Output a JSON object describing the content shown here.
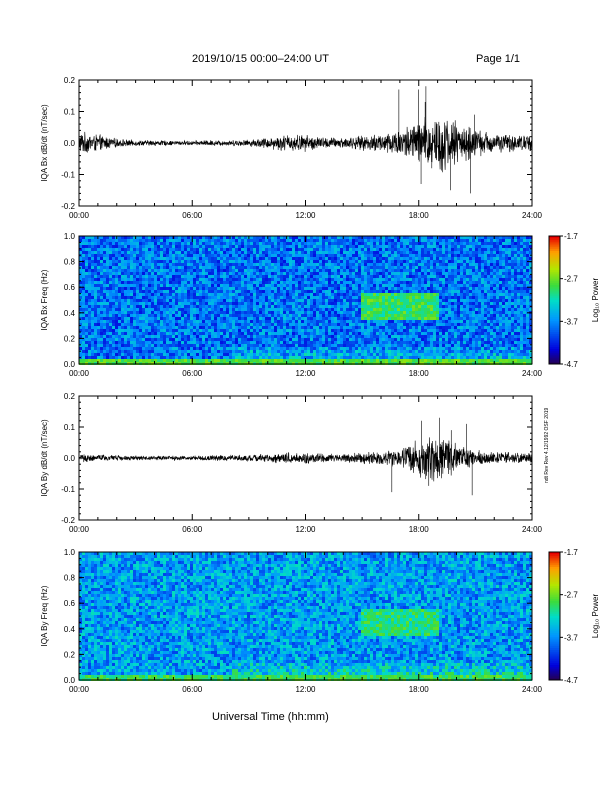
{
  "header": {
    "title": "2019/10/15  00:00–24:00 UT",
    "page": "Page 1/1"
  },
  "footer": {
    "xlabel": "Universal Time (hh:mm)",
    "stamp": "ndt Rev Rev 4.12/1992 OSF 2019"
  },
  "colors": {
    "trace": "#000000",
    "background": "#ffffff"
  },
  "chart_data": [
    {
      "type": "line",
      "ylabel": "IQA Bx dB/dt (nT/sec)",
      "ylim": [
        -0.2,
        0.2
      ],
      "yticks": [
        -0.2,
        -0.1,
        0.0,
        0.1,
        0.2
      ],
      "ytick_labels": [
        "-0.2",
        "-0.1",
        "0.0",
        "0.1",
        "0.2"
      ],
      "xlim": [
        0,
        24
      ],
      "xticks": [
        0,
        6,
        12,
        18,
        24
      ],
      "xtick_labels": [
        "00:00",
        "06:00",
        "12:00",
        "18:00",
        "24:00"
      ],
      "envelope_x": [
        0,
        1,
        2,
        3,
        4,
        5,
        6,
        7,
        8,
        9,
        10,
        11,
        12,
        13,
        14,
        15,
        16,
        17,
        18,
        19,
        20,
        21,
        22,
        23,
        24
      ],
      "envelope_amp": [
        0.04,
        0.03,
        0.015,
        0.01,
        0.01,
        0.008,
        0.008,
        0.01,
        0.01,
        0.012,
        0.02,
        0.03,
        0.03,
        0.02,
        0.02,
        0.025,
        0.035,
        0.05,
        0.08,
        0.11,
        0.08,
        0.05,
        0.035,
        0.03,
        0.03
      ],
      "peak_values": [
        0.18,
        0.17,
        0.17,
        -0.16,
        -0.15,
        0.13,
        -0.13,
        0.09,
        -0.08
      ]
    },
    {
      "type": "heatmap",
      "ylabel": "IQA Bx Freq (Hz)",
      "ylim": [
        0.0,
        1.0
      ],
      "yticks": [
        0.0,
        0.2,
        0.4,
        0.6,
        0.8,
        1.0
      ],
      "ytick_labels": [
        "0.0",
        "0.2",
        "0.4",
        "0.6",
        "0.8",
        "1.0"
      ],
      "xlim": [
        0,
        24
      ],
      "xticks": [
        0,
        6,
        12,
        18,
        24
      ],
      "xtick_labels": [
        "00:00",
        "06:00",
        "12:00",
        "18:00",
        "24:00"
      ],
      "colorbar": {
        "label": "Log₁₀ Power",
        "range": [
          -4.7,
          -1.7
        ],
        "tick_labels": [
          "-1.7",
          "-2.7",
          "-3.7",
          "-4.7"
        ]
      },
      "features": {
        "baseline": -3.8,
        "low_freq_band": -2.8,
        "enhancement_hours": [
          15,
          19
        ],
        "enhancement_freq": [
          0.35,
          0.55
        ],
        "enhancement_level": -2.9
      }
    },
    {
      "type": "line",
      "ylabel": "IQA By dB/dt (nT/sec)",
      "ylim": [
        -0.2,
        0.2
      ],
      "yticks": [
        -0.2,
        -0.1,
        0.0,
        0.1,
        0.2
      ],
      "ytick_labels": [
        "-0.2",
        "-0.1",
        "0.0",
        "0.1",
        "0.2"
      ],
      "xlim": [
        0,
        24
      ],
      "xticks": [
        0,
        6,
        12,
        18,
        24
      ],
      "xtick_labels": [
        "00:00",
        "06:00",
        "12:00",
        "18:00",
        "24:00"
      ],
      "envelope_x": [
        0,
        1,
        2,
        3,
        4,
        5,
        6,
        7,
        8,
        9,
        10,
        11,
        12,
        13,
        14,
        15,
        16,
        17,
        18,
        19,
        20,
        21,
        22,
        23,
        24
      ],
      "envelope_amp": [
        0.015,
        0.012,
        0.01,
        0.008,
        0.008,
        0.008,
        0.008,
        0.01,
        0.01,
        0.012,
        0.015,
        0.02,
        0.02,
        0.015,
        0.015,
        0.02,
        0.025,
        0.035,
        0.07,
        0.08,
        0.05,
        0.03,
        0.02,
        0.02,
        0.02
      ],
      "peak_values": [
        0.13,
        0.12,
        0.11,
        -0.12,
        -0.11,
        0.09,
        -0.09
      ]
    },
    {
      "type": "heatmap",
      "ylabel": "IQA By Freq (Hz)",
      "ylim": [
        0.0,
        1.0
      ],
      "yticks": [
        0.0,
        0.2,
        0.4,
        0.6,
        0.8,
        1.0
      ],
      "ytick_labels": [
        "0.0",
        "0.2",
        "0.4",
        "0.6",
        "0.8",
        "1.0"
      ],
      "xlim": [
        0,
        24
      ],
      "xticks": [
        0,
        6,
        12,
        18,
        24
      ],
      "xtick_labels": [
        "00:00",
        "06:00",
        "12:00",
        "18:00",
        "24:00"
      ],
      "colorbar": {
        "label": "Log₁₀ Power",
        "range": [
          -4.7,
          -1.7
        ],
        "tick_labels": [
          "-1.7",
          "-2.7",
          "-3.7",
          "-4.7"
        ]
      },
      "features": {
        "baseline": -3.6,
        "low_freq_band": -2.9,
        "enhancement_hours": [
          15,
          19
        ],
        "enhancement_freq": [
          0.35,
          0.55
        ],
        "enhancement_level": -3.0
      }
    }
  ]
}
